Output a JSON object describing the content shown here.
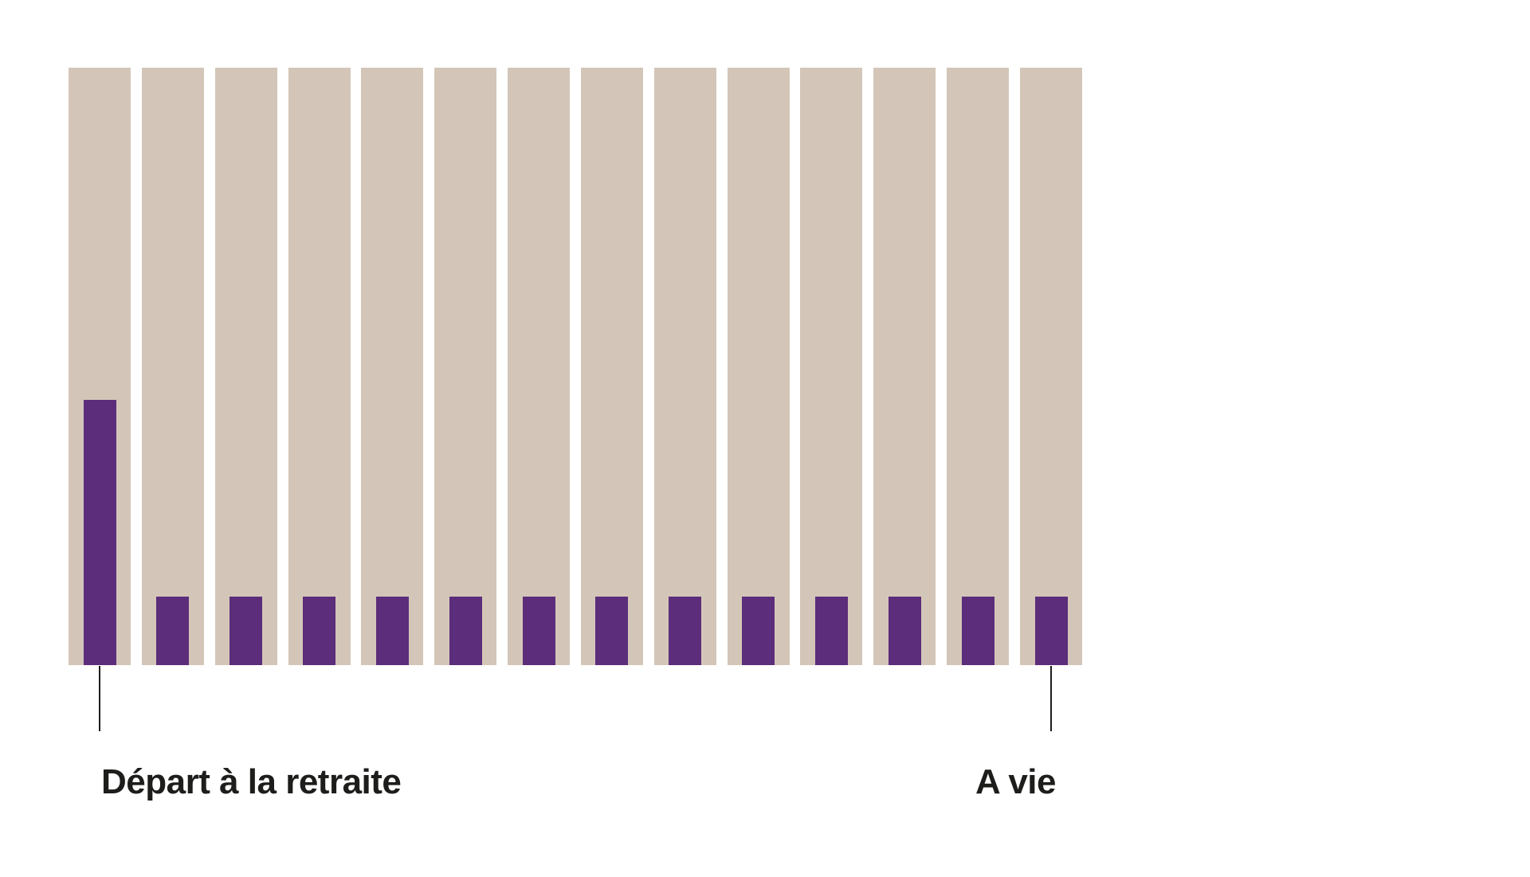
{
  "colors": {
    "page_background": "#ffffff",
    "track_bar": "#d3c6b8",
    "value_bar": "#5c2d7a",
    "leader_line": "#1d1d1b",
    "label_text": "#1d1d1b"
  },
  "chart_data": {
    "type": "bar",
    "bar_count": 14,
    "ylim": [
      0,
      100
    ],
    "grid": false,
    "legend": false,
    "axes_visible": false,
    "series": [
      {
        "name": "track-background",
        "color": "#d3c6b8",
        "values": [
          100,
          100,
          100,
          100,
          100,
          100,
          100,
          100,
          100,
          100,
          100,
          100,
          100,
          100
        ]
      },
      {
        "name": "payout",
        "color": "#5c2d7a",
        "values": [
          44.4,
          11.5,
          11.5,
          11.5,
          11.5,
          11.5,
          11.5,
          11.5,
          11.5,
          11.5,
          11.5,
          11.5,
          11.5,
          11.5
        ]
      }
    ],
    "annotations": [
      {
        "label": "Départ à la retraite",
        "bar_index": 0,
        "align": "left"
      },
      {
        "label": "A vie",
        "bar_index": 13,
        "align": "right"
      }
    ]
  }
}
